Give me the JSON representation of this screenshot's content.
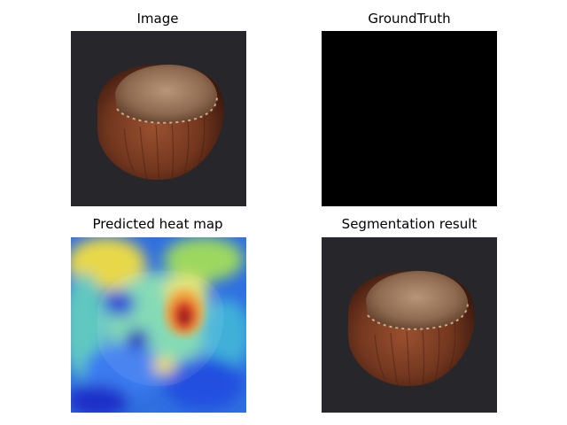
{
  "figure": {
    "panels": [
      {
        "title": "Image",
        "content": "hazelnut-photo"
      },
      {
        "title": "GroundTruth",
        "content": "empty-mask"
      },
      {
        "title": "Predicted heat map",
        "content": "heatmap-overlay"
      },
      {
        "title": "Segmentation result",
        "content": "hazelnut-photo"
      }
    ]
  },
  "colors": {
    "background": "#26262b",
    "nut_shell_dark": "#5a2816",
    "nut_shell_mid": "#8a4428",
    "nut_cap": "#a88468",
    "mask": "#000000",
    "heat_low": "#1f3ad6",
    "heat_mid": "#3fc0b0",
    "heat_warm": "#e8d84a",
    "heat_high": "#c81818"
  }
}
